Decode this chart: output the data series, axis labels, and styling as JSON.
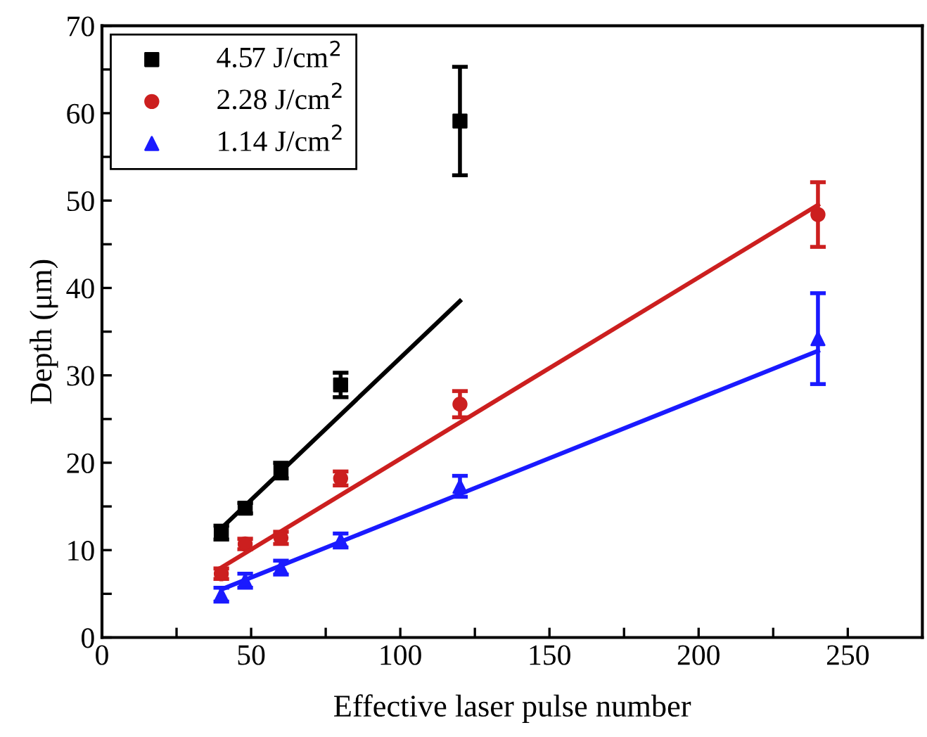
{
  "chart_data": {
    "type": "scatter",
    "xlabel": "Effective laser pulse number",
    "ylabel": "Depth (μm)",
    "xlim": [
      0,
      275
    ],
    "ylim": [
      0,
      70
    ],
    "xticks": [
      0,
      {
        "value": 25,
        "label": null
      },
      50,
      {
        "value": 75,
        "label": null
      },
      100,
      {
        "value": 125,
        "label": null
      },
      150,
      {
        "value": 175,
        "label": null
      },
      200,
      {
        "value": 225,
        "label": null
      },
      250
    ],
    "yticks": [
      0,
      {
        "value": 5,
        "label": null
      },
      10,
      {
        "value": 15,
        "label": null
      },
      20,
      {
        "value": 25,
        "label": null
      },
      30,
      {
        "value": 35,
        "label": null
      },
      40,
      {
        "value": 45,
        "label": null
      },
      50,
      {
        "value": 55,
        "label": null
      },
      60,
      {
        "value": 65,
        "label": null
      },
      70
    ],
    "grid": false,
    "legend": "top left",
    "series": [
      {
        "name": "4.57 J/cm$^{2}$",
        "color": "#000000",
        "marker": "square",
        "x": [
          40,
          48,
          60,
          80,
          120
        ],
        "values": [
          12.0,
          14.8,
          19.1,
          28.9,
          59.1
        ],
        "errors": [
          0.8,
          0.6,
          0.9,
          1.4,
          6.2
        ]
      },
      {
        "name": "2.28 J/cm$^{2}$",
        "color": "#cc1f1f",
        "marker": "circle",
        "x": [
          40,
          48,
          60,
          80,
          120,
          240
        ],
        "values": [
          7.3,
          10.7,
          11.4,
          18.2,
          26.7,
          48.4
        ],
        "errors": [
          0.6,
          0.6,
          0.7,
          0.8,
          1.5,
          3.7
        ]
      },
      {
        "name": "1.14 J/cm$^{2}$",
        "color": "#1a1aff",
        "marker": "triangle",
        "x": [
          40,
          48,
          60,
          80,
          120,
          240
        ],
        "values": [
          4.9,
          6.5,
          8.0,
          11.1,
          17.3,
          34.2
        ],
        "errors": [
          0.8,
          0.8,
          0.8,
          0.8,
          1.2,
          5.2
        ]
      },
      {
        "type": "line",
        "color": "#000000",
        "line_style": "solid",
        "x": [
          40,
          120
        ],
        "values": [
          12.5,
          38.5
        ]
      },
      {
        "type": "line",
        "color": "#cc1f1f",
        "line_style": "solid",
        "x": [
          40,
          240
        ],
        "values": [
          8.0,
          49.5
        ]
      },
      {
        "type": "line",
        "color": "#1a1aff",
        "line_style": "solid",
        "x": [
          40,
          240
        ],
        "values": [
          5.5,
          32.8
        ]
      }
    ]
  }
}
